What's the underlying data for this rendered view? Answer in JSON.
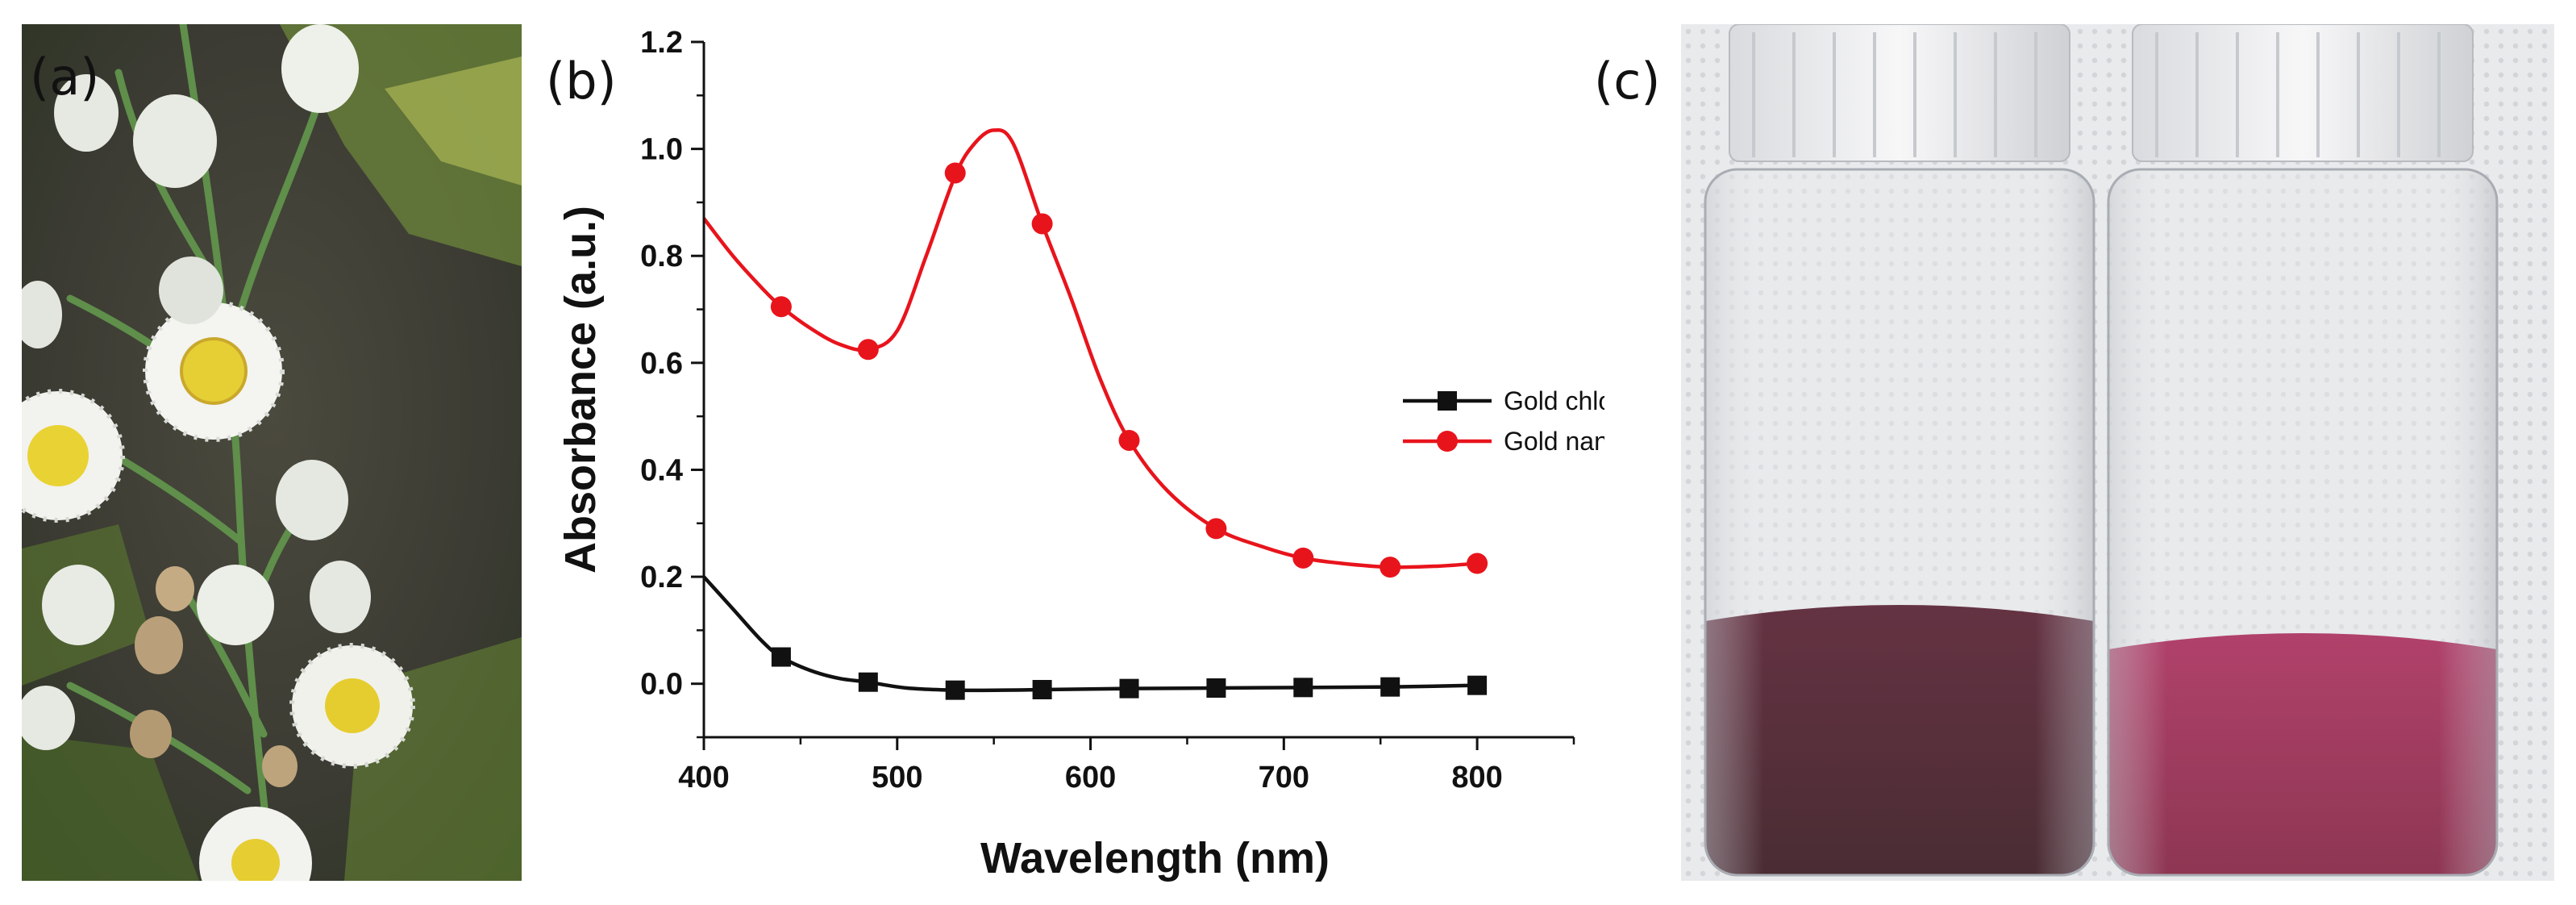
{
  "panels": {
    "a": {
      "label": "(a)"
    },
    "b": {
      "label": "(b)"
    },
    "c": {
      "label": "(c)"
    }
  },
  "colors": {
    "series_gold_chloride": "#111111",
    "series_gold_np": "#e8141c",
    "dark_solution": "#3a0a18",
    "light_solution": "#8e1a3f"
  },
  "chart_data": {
    "type": "line",
    "title": "",
    "xlabel": "Wavelength (nm)",
    "ylabel": "Absorbance (a.u.)",
    "xlim": [
      400,
      850
    ],
    "ylim": [
      -0.1,
      1.2
    ],
    "x_ticks": [
      400,
      500,
      600,
      700,
      800
    ],
    "y_ticks": [
      0.0,
      0.2,
      0.4,
      0.6,
      0.8,
      1.0,
      1.2
    ],
    "x_tick_labels": [
      "400",
      "500",
      "600",
      "700",
      "800"
    ],
    "y_tick_labels": [
      "0.0",
      "0.2",
      "0.4",
      "0.6",
      "0.8",
      "1.0",
      "1.2"
    ],
    "legend_position": "center-right",
    "series": [
      {
        "name": "Gold chloride trihydrate",
        "marker": "square",
        "curve": [
          [
            400,
            0.2
          ],
          [
            415,
            0.14
          ],
          [
            430,
            0.08
          ],
          [
            440,
            0.05
          ],
          [
            455,
            0.025
          ],
          [
            470,
            0.01
          ],
          [
            485,
            0.003
          ],
          [
            505,
            -0.008
          ],
          [
            530,
            -0.012
          ],
          [
            555,
            -0.012
          ],
          [
            575,
            -0.011
          ],
          [
            620,
            -0.009
          ],
          [
            665,
            -0.008
          ],
          [
            710,
            -0.007
          ],
          [
            755,
            -0.006
          ],
          [
            800,
            -0.003
          ]
        ],
        "markers": [
          [
            440,
            0.05
          ],
          [
            485,
            0.003
          ],
          [
            530,
            -0.012
          ],
          [
            575,
            -0.011
          ],
          [
            620,
            -0.009
          ],
          [
            665,
            -0.008
          ],
          [
            710,
            -0.007
          ],
          [
            755,
            -0.006
          ],
          [
            800,
            -0.003
          ]
        ]
      },
      {
        "name": "Gold nanoparticles",
        "marker": "circle",
        "curve": [
          [
            400,
            0.87
          ],
          [
            415,
            0.8
          ],
          [
            430,
            0.74
          ],
          [
            440,
            0.705
          ],
          [
            455,
            0.665
          ],
          [
            470,
            0.635
          ],
          [
            485,
            0.625
          ],
          [
            500,
            0.66
          ],
          [
            515,
            0.8
          ],
          [
            530,
            0.95
          ],
          [
            540,
            1.01
          ],
          [
            550,
            1.035
          ],
          [
            560,
            1.01
          ],
          [
            575,
            0.86
          ],
          [
            590,
            0.72
          ],
          [
            605,
            0.57
          ],
          [
            620,
            0.455
          ],
          [
            640,
            0.36
          ],
          [
            665,
            0.29
          ],
          [
            690,
            0.255
          ],
          [
            710,
            0.235
          ],
          [
            730,
            0.225
          ],
          [
            755,
            0.218
          ],
          [
            780,
            0.22
          ],
          [
            800,
            0.225
          ]
        ],
        "markers": [
          [
            440,
            0.705
          ],
          [
            485,
            0.625
          ],
          [
            530,
            0.955
          ],
          [
            575,
            0.86
          ],
          [
            620,
            0.455
          ],
          [
            665,
            0.29
          ],
          [
            710,
            0.235
          ],
          [
            755,
            0.218
          ],
          [
            800,
            0.225
          ]
        ]
      }
    ]
  }
}
